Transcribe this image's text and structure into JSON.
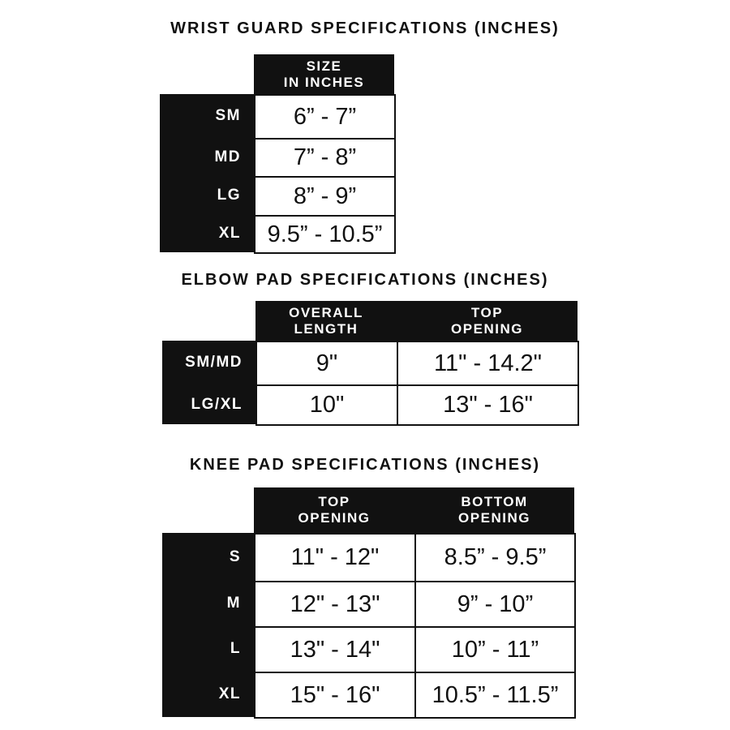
{
  "tables": [
    {
      "title": "WRIST GUARD SPECIFICATIONS (INCHES)",
      "columns": [
        "SIZE\nIN INCHES"
      ],
      "rows": [
        {
          "label": "SM",
          "values": [
            "6” - 7”"
          ]
        },
        {
          "label": "MD",
          "values": [
            "7” - 8”"
          ]
        },
        {
          "label": "LG",
          "values": [
            "8” - 9”"
          ]
        },
        {
          "label": "XL",
          "values": [
            "9.5” - 10.5”"
          ]
        }
      ]
    },
    {
      "title": "ELBOW PAD SPECIFICATIONS (INCHES)",
      "columns": [
        "OVERALL\nLENGTH",
        "TOP\nOPENING"
      ],
      "rows": [
        {
          "label": "SM/MD",
          "values": [
            "9\"",
            "11\" - 14.2\""
          ]
        },
        {
          "label": "LG/XL",
          "values": [
            "10\"",
            "13\" - 16\""
          ]
        }
      ]
    },
    {
      "title": "KNEE PAD SPECIFICATIONS (INCHES)",
      "columns": [
        "TOP\nOPENING",
        "BOTTOM\nOPENING"
      ],
      "rows": [
        {
          "label": "S",
          "values": [
            "11\" - 12\"",
            "8.5” - 9.5”"
          ]
        },
        {
          "label": "M",
          "values": [
            "12\" - 13\"",
            "9” - 10”"
          ]
        },
        {
          "label": "L",
          "values": [
            "13\" - 14\"",
            "10” - 11”"
          ]
        },
        {
          "label": "XL",
          "values": [
            "15\" - 16\"",
            "10.5” - 11.5”"
          ]
        }
      ]
    }
  ]
}
